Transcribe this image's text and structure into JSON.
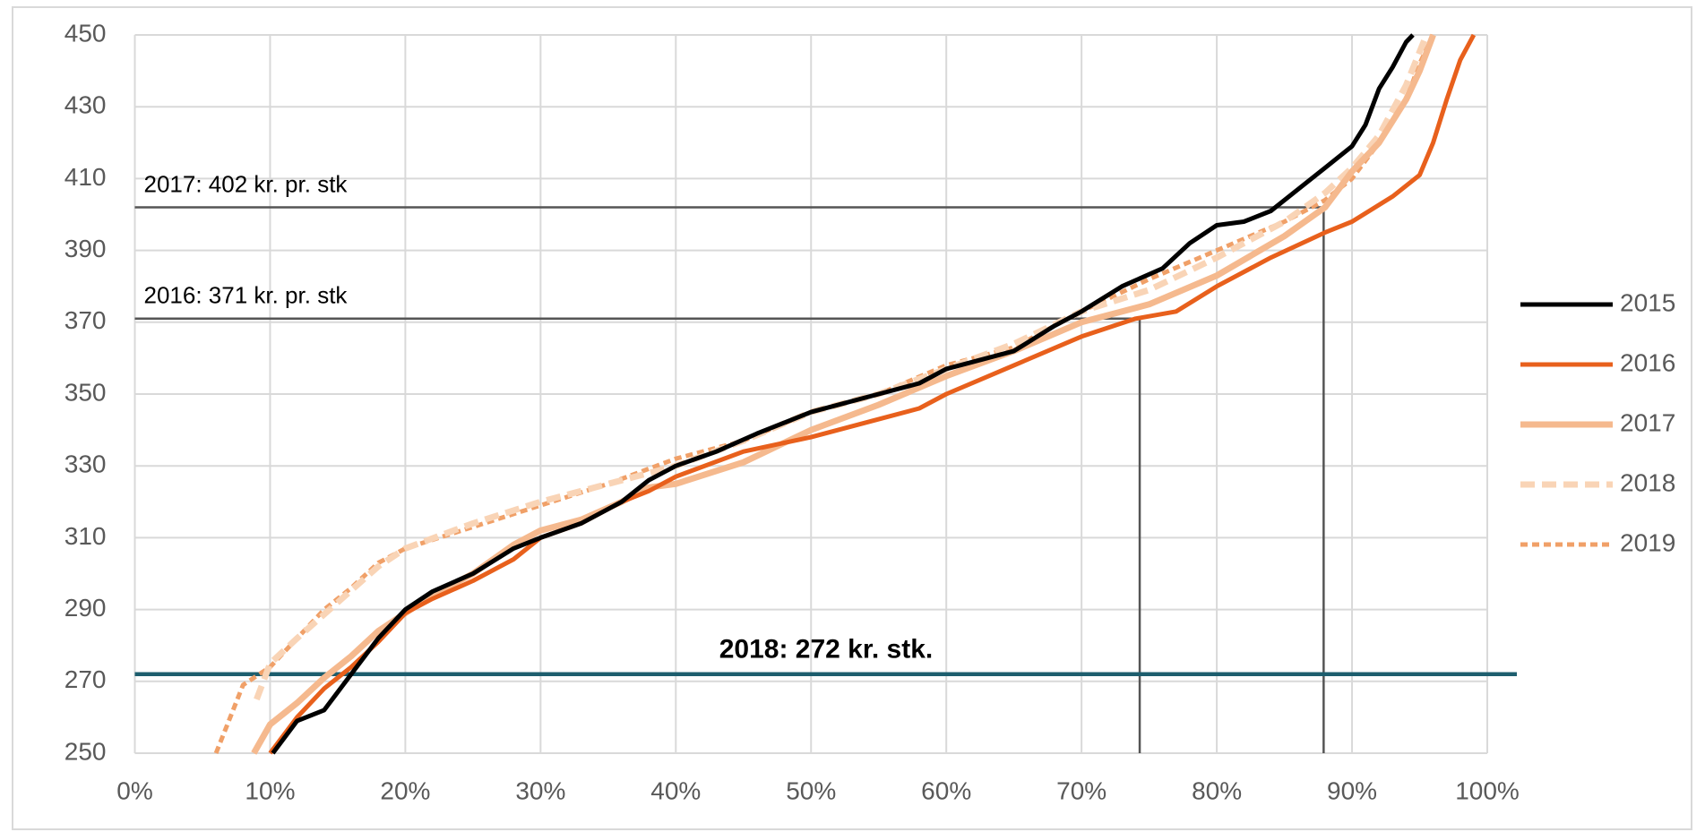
{
  "chart_data": {
    "type": "line",
    "xlim": [
      0,
      100
    ],
    "xticks": [
      {
        "value": 0,
        "label": "0%"
      },
      {
        "value": 10,
        "label": "10%"
      },
      {
        "value": 20,
        "label": "20%"
      },
      {
        "value": 30,
        "label": "30%"
      },
      {
        "value": 40,
        "label": "40%"
      },
      {
        "value": 50,
        "label": "50%"
      },
      {
        "value": 60,
        "label": "60%"
      },
      {
        "value": 70,
        "label": "70%"
      },
      {
        "value": 80,
        "label": "80%"
      },
      {
        "value": 90,
        "label": "90%"
      },
      {
        "value": 100,
        "label": "100%"
      }
    ],
    "ylim": [
      250,
      450
    ],
    "yticks": [
      250,
      270,
      290,
      310,
      330,
      350,
      370,
      390,
      410,
      430,
      450
    ],
    "grid": true,
    "legend": "right",
    "series": [
      {
        "name": "2015",
        "color": "#000000",
        "dash": "solid",
        "width": "thick",
        "x": [
          10.2,
          12,
          14,
          16,
          18,
          20,
          22,
          25,
          28,
          30,
          33,
          36,
          38,
          40,
          43,
          46,
          50,
          55,
          58,
          60,
          65,
          68,
          70,
          73,
          76,
          78,
          80,
          82,
          84,
          86,
          88,
          90,
          91,
          92,
          93,
          94,
          94.5
        ],
        "values": [
          250,
          259,
          262,
          272,
          282,
          290,
          295,
          300,
          307,
          310,
          314,
          320,
          326,
          330,
          334,
          339,
          345,
          350,
          353,
          357,
          362,
          369,
          373,
          380,
          385,
          392,
          397,
          398,
          401,
          407,
          413,
          419,
          425,
          435,
          441,
          448,
          450
        ]
      },
      {
        "name": "2016",
        "color": "#e8601c",
        "dash": "solid",
        "width": "thick",
        "x": [
          10,
          12,
          14,
          16,
          18,
          20,
          22,
          25,
          28,
          30,
          33,
          36,
          38,
          40,
          45,
          50,
          55,
          58,
          60,
          65,
          70,
          74,
          77,
          80,
          84,
          88,
          90,
          93,
          95,
          96,
          97,
          98,
          99
        ],
        "values": [
          250,
          260,
          268,
          274,
          281,
          289,
          293,
          298,
          304,
          310,
          314,
          320,
          323,
          327,
          334,
          338,
          343,
          346,
          350,
          358,
          366,
          371,
          373,
          380,
          388,
          395,
          398,
          405,
          411,
          420,
          432,
          443,
          450
        ]
      },
      {
        "name": "2017",
        "color": "#f5b98e",
        "dash": "solid",
        "width": "wide",
        "x": [
          8.8,
          10,
          12,
          14,
          16,
          18,
          20,
          22,
          25,
          28,
          30,
          33,
          36,
          38,
          40,
          45,
          50,
          55,
          60,
          65,
          70,
          75,
          80,
          85,
          88,
          90,
          92,
          94,
          95,
          96
        ],
        "values": [
          250,
          258,
          264,
          271,
          277,
          284,
          289,
          294,
          300,
          308,
          312,
          315,
          320,
          324,
          325,
          331,
          340,
          347,
          355,
          362,
          370,
          375,
          383,
          394,
          402,
          412,
          420,
          432,
          440,
          450
        ]
      },
      {
        "name": "2018",
        "color": "#f9d4b6",
        "dash": "long",
        "width": "wide",
        "x": [
          9,
          10,
          12,
          15,
          18,
          20,
          25,
          30,
          35,
          40,
          45,
          50,
          55,
          60,
          65,
          70,
          75,
          80,
          85,
          88,
          90,
          92,
          94,
          95.5
        ],
        "values": [
          265,
          275,
          282,
          292,
          302,
          307,
          314,
          320,
          325,
          330,
          337,
          345,
          350,
          357,
          364,
          373,
          379,
          388,
          398,
          406,
          413,
          422,
          436,
          450
        ]
      },
      {
        "name": "2019",
        "color": "#f0a068",
        "dash": "short",
        "width": "thick",
        "x": [
          6,
          8,
          10,
          12,
          14,
          16,
          18,
          20,
          25,
          30,
          35,
          40,
          45,
          50,
          55,
          60,
          65,
          70,
          75,
          80,
          85,
          88,
          90,
          92,
          94,
          95,
          96
        ],
        "values": [
          250,
          269,
          274,
          282,
          290,
          296,
          303,
          307,
          313,
          319,
          325,
          332,
          337,
          345,
          350,
          358,
          363,
          373,
          382,
          390,
          398,
          404,
          410,
          420,
          432,
          442,
          450
        ]
      }
    ],
    "annotations": [
      {
        "text": "2017: 402 kr. pr. stk",
        "value": 402,
        "x": 87.9,
        "color": "#555555"
      },
      {
        "text": "2016: 371 kr. pr. stk",
        "value": 371,
        "x": 74.3,
        "color": "#555555"
      },
      {
        "text": "2018: 272 kr. stk.",
        "value": 272,
        "color": "#1d5e6e"
      }
    ]
  }
}
